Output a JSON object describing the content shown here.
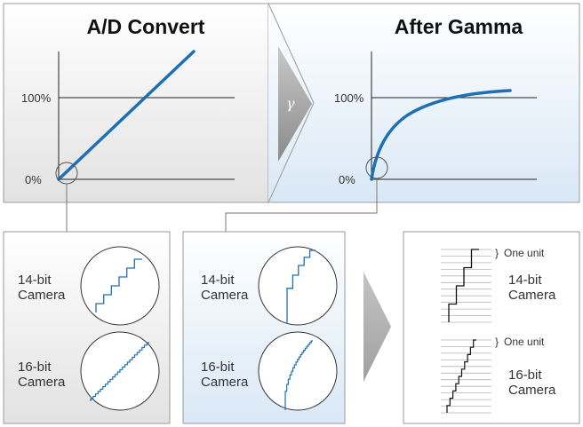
{
  "panels": {
    "left_title": "A/D Convert",
    "right_title": "After Gamma",
    "gamma_symbol": "γ",
    "label_100": "100%",
    "label_0": "0%"
  },
  "zoom": {
    "line1_a": "14-bit",
    "line2_a": "Camera",
    "line1_b": "16-bit",
    "line2_b": "Camera"
  },
  "units": {
    "one_unit": "One unit",
    "brace": "}"
  },
  "colors": {
    "accent_blue": "#1f6fb5",
    "panel_gray": "#e3e3e3",
    "panel_blue": "#ddeaf6",
    "arrow_gray": "#9a9a9a"
  }
}
